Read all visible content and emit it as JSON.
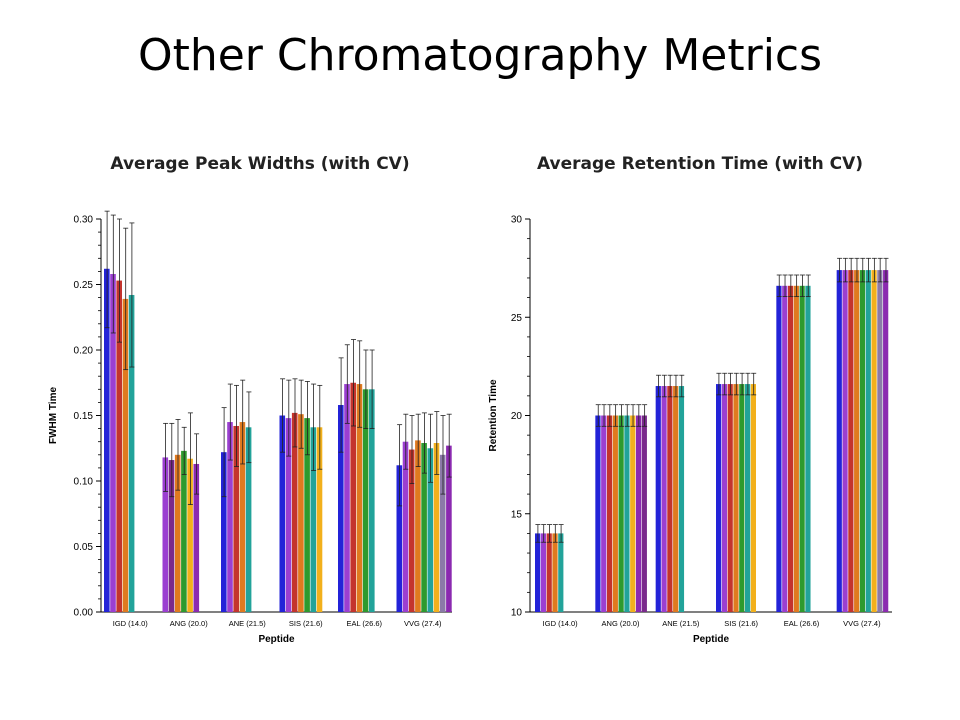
{
  "slide": {
    "title": "Other Chromatography Metrics",
    "left_subtitle": "Average Peak Widths (with CV)",
    "right_subtitle": "Average Retention Time (with CV)"
  },
  "chart_data": [
    {
      "type": "bar",
      "xlabel": "Peptide",
      "ylabel": "FWHM Time",
      "ylim": [
        0,
        0.3
      ],
      "yticks": [
        "0.00",
        "0.05",
        "0.10",
        "0.15",
        "0.20",
        "0.25",
        "0.30"
      ],
      "categories": [
        "IGD (14.0)",
        "ANG (20.0)",
        "ANE (21.5)",
        "SIS (21.6)",
        "EAL (26.6)",
        "VVG (27.4)"
      ],
      "groups": [
        {
          "bars": [
            {
              "color": "#2323d8",
              "value": 0.262,
              "err": 0.045
            },
            {
              "color": "#9b3fd1",
              "value": 0.258,
              "err": 0.045
            },
            {
              "color": "#c4342d",
              "value": 0.253,
              "err": 0.047
            },
            {
              "color": "#e07a1f",
              "value": 0.239,
              "err": 0.054
            },
            {
              "color": "#22a39a",
              "value": 0.242,
              "err": 0.055
            }
          ]
        },
        {
          "bars": [
            {
              "color": "#9b3fd1",
              "value": 0.118,
              "err": 0.026
            },
            {
              "color": "#7a2a8c",
              "value": 0.116,
              "err": 0.028
            },
            {
              "color": "#e07a1f",
              "value": 0.12,
              "err": 0.027
            },
            {
              "color": "#2e9a2e",
              "value": 0.123,
              "err": 0.018
            },
            {
              "color": "#f2b01c",
              "value": 0.117,
              "err": 0.035
            },
            {
              "color": "#8b2ab0",
              "value": 0.113,
              "err": 0.023
            }
          ]
        },
        {
          "bars": [
            {
              "color": "#2323d8",
              "value": 0.122,
              "err": 0.034
            },
            {
              "color": "#9b3fd1",
              "value": 0.145,
              "err": 0.029
            },
            {
              "color": "#c4342d",
              "value": 0.142,
              "err": 0.031
            },
            {
              "color": "#e07a1f",
              "value": 0.145,
              "err": 0.032
            },
            {
              "color": "#22a39a",
              "value": 0.141,
              "err": 0.027
            }
          ]
        },
        {
          "bars": [
            {
              "color": "#2323d8",
              "value": 0.15,
              "err": 0.028
            },
            {
              "color": "#9b3fd1",
              "value": 0.148,
              "err": 0.029
            },
            {
              "color": "#c4342d",
              "value": 0.152,
              "err": 0.026
            },
            {
              "color": "#e07a1f",
              "value": 0.151,
              "err": 0.026
            },
            {
              "color": "#2e9a2e",
              "value": 0.148,
              "err": 0.028
            },
            {
              "color": "#22a39a",
              "value": 0.141,
              "err": 0.033
            },
            {
              "color": "#f2b01c",
              "value": 0.141,
              "err": 0.032
            }
          ]
        },
        {
          "bars": [
            {
              "color": "#2323d8",
              "value": 0.158,
              "err": 0.036
            },
            {
              "color": "#9b3fd1",
              "value": 0.174,
              "err": 0.03
            },
            {
              "color": "#c4342d",
              "value": 0.175,
              "err": 0.033
            },
            {
              "color": "#e07a1f",
              "value": 0.174,
              "err": 0.033
            },
            {
              "color": "#2e9a2e",
              "value": 0.17,
              "err": 0.03
            },
            {
              "color": "#22a39a",
              "value": 0.17,
              "err": 0.03
            }
          ]
        },
        {
          "bars": [
            {
              "color": "#2323d8",
              "value": 0.112,
              "err": 0.031
            },
            {
              "color": "#9b3fd1",
              "value": 0.13,
              "err": 0.021
            },
            {
              "color": "#c4342d",
              "value": 0.124,
              "err": 0.026
            },
            {
              "color": "#e07a1f",
              "value": 0.131,
              "err": 0.02
            },
            {
              "color": "#2e9a2e",
              "value": 0.129,
              "err": 0.023
            },
            {
              "color": "#22a39a",
              "value": 0.125,
              "err": 0.026
            },
            {
              "color": "#f2b01c",
              "value": 0.129,
              "err": 0.024
            },
            {
              "color": "#8b7aa8",
              "value": 0.12,
              "err": 0.03
            },
            {
              "color": "#8b2ab0",
              "value": 0.127,
              "err": 0.024
            }
          ]
        }
      ]
    },
    {
      "type": "bar",
      "xlabel": "Peptide",
      "ylabel": "Retention Time",
      "ylim": [
        10,
        30
      ],
      "yticks": [
        "10",
        "15",
        "20",
        "25",
        "30"
      ],
      "categories": [
        "IGD (14.0)",
        "ANG (20.0)",
        "ANE (21.5)",
        "SIS (21.6)",
        "EAL (26.6)",
        "VVG (27.4)"
      ],
      "groups": [
        {
          "bars": [
            {
              "color": "#2323d8",
              "value": 14.0,
              "err": 0.45
            },
            {
              "color": "#9b3fd1",
              "value": 14.0,
              "err": 0.45
            },
            {
              "color": "#c4342d",
              "value": 14.0,
              "err": 0.45
            },
            {
              "color": "#e07a1f",
              "value": 14.0,
              "err": 0.45
            },
            {
              "color": "#22a39a",
              "value": 14.0,
              "err": 0.45
            }
          ]
        },
        {
          "bars": [
            {
              "color": "#2323d8",
              "value": 20.0,
              "err": 0.55
            },
            {
              "color": "#9b3fd1",
              "value": 20.0,
              "err": 0.55
            },
            {
              "color": "#c4342d",
              "value": 20.0,
              "err": 0.55
            },
            {
              "color": "#e07a1f",
              "value": 20.0,
              "err": 0.55
            },
            {
              "color": "#2e9a2e",
              "value": 20.0,
              "err": 0.55
            },
            {
              "color": "#22a39a",
              "value": 20.0,
              "err": 0.55
            },
            {
              "color": "#f2b01c",
              "value": 20.0,
              "err": 0.55
            },
            {
              "color": "#8b2ab0",
              "value": 20.0,
              "err": 0.55
            },
            {
              "color": "#7a2a8c",
              "value": 20.0,
              "err": 0.55
            }
          ]
        },
        {
          "bars": [
            {
              "color": "#2323d8",
              "value": 21.5,
              "err": 0.55
            },
            {
              "color": "#9b3fd1",
              "value": 21.5,
              "err": 0.55
            },
            {
              "color": "#c4342d",
              "value": 21.5,
              "err": 0.55
            },
            {
              "color": "#e07a1f",
              "value": 21.5,
              "err": 0.55
            },
            {
              "color": "#22a39a",
              "value": 21.5,
              "err": 0.55
            }
          ]
        },
        {
          "bars": [
            {
              "color": "#2323d8",
              "value": 21.6,
              "err": 0.55
            },
            {
              "color": "#9b3fd1",
              "value": 21.6,
              "err": 0.55
            },
            {
              "color": "#c4342d",
              "value": 21.6,
              "err": 0.55
            },
            {
              "color": "#e07a1f",
              "value": 21.6,
              "err": 0.55
            },
            {
              "color": "#2e9a2e",
              "value": 21.6,
              "err": 0.55
            },
            {
              "color": "#22a39a",
              "value": 21.6,
              "err": 0.55
            },
            {
              "color": "#f2b01c",
              "value": 21.6,
              "err": 0.55
            }
          ]
        },
        {
          "bars": [
            {
              "color": "#2323d8",
              "value": 26.6,
              "err": 0.55
            },
            {
              "color": "#9b3fd1",
              "value": 26.6,
              "err": 0.55
            },
            {
              "color": "#c4342d",
              "value": 26.6,
              "err": 0.55
            },
            {
              "color": "#e07a1f",
              "value": 26.6,
              "err": 0.55
            },
            {
              "color": "#2e9a2e",
              "value": 26.6,
              "err": 0.55
            },
            {
              "color": "#22a39a",
              "value": 26.6,
              "err": 0.55
            }
          ]
        },
        {
          "bars": [
            {
              "color": "#2323d8",
              "value": 27.4,
              "err": 0.6
            },
            {
              "color": "#9b3fd1",
              "value": 27.4,
              "err": 0.6
            },
            {
              "color": "#c4342d",
              "value": 27.4,
              "err": 0.6
            },
            {
              "color": "#e07a1f",
              "value": 27.4,
              "err": 0.6
            },
            {
              "color": "#2e9a2e",
              "value": 27.4,
              "err": 0.6
            },
            {
              "color": "#22a39a",
              "value": 27.4,
              "err": 0.6
            },
            {
              "color": "#f2b01c",
              "value": 27.4,
              "err": 0.6
            },
            {
              "color": "#8b7aa8",
              "value": 27.4,
              "err": 0.6
            },
            {
              "color": "#8b2ab0",
              "value": 27.4,
              "err": 0.6
            }
          ]
        }
      ]
    }
  ]
}
